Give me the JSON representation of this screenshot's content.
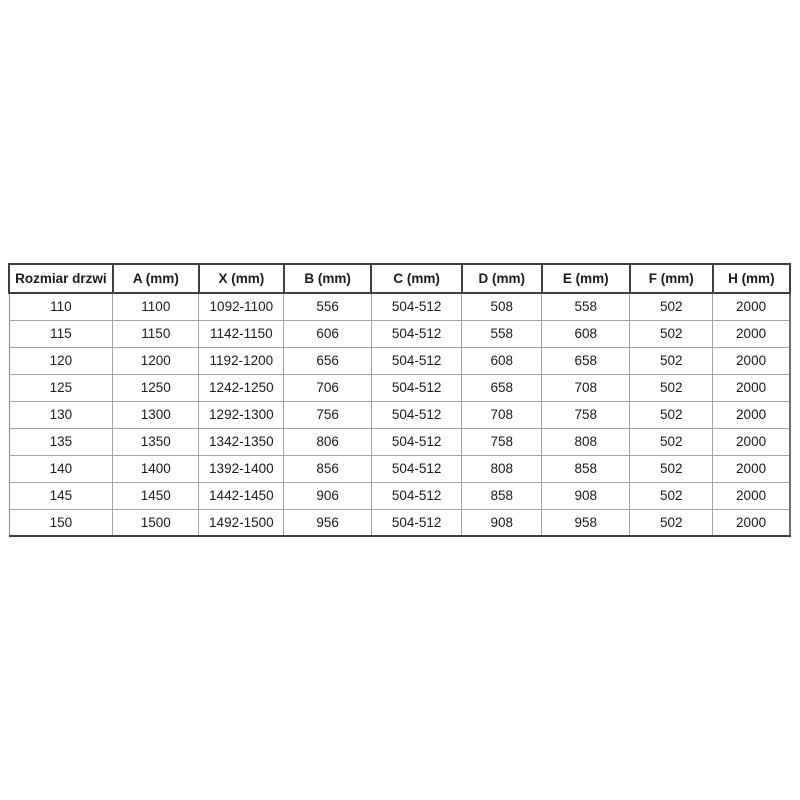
{
  "table": {
    "name": "door-size-specification-table",
    "headers": [
      "Rozmiar drzwi",
      "A (mm)",
      "X (mm)",
      "B (mm)",
      "C (mm)",
      "D (mm)",
      "E (mm)",
      "F (mm)",
      "H (mm)"
    ],
    "rows": [
      [
        "110",
        "1100",
        "1092-1100",
        "556",
        "504-512",
        "508",
        "558",
        "502",
        "2000"
      ],
      [
        "115",
        "1150",
        "1142-1150",
        "606",
        "504-512",
        "558",
        "608",
        "502",
        "2000"
      ],
      [
        "120",
        "1200",
        "1192-1200",
        "656",
        "504-512",
        "608",
        "658",
        "502",
        "2000"
      ],
      [
        "125",
        "1250",
        "1242-1250",
        "706",
        "504-512",
        "658",
        "708",
        "502",
        "2000"
      ],
      [
        "130",
        "1300",
        "1292-1300",
        "756",
        "504-512",
        "708",
        "758",
        "502",
        "2000"
      ],
      [
        "135",
        "1350",
        "1342-1350",
        "806",
        "504-512",
        "758",
        "808",
        "502",
        "2000"
      ],
      [
        "140",
        "1400",
        "1392-1400",
        "856",
        "504-512",
        "808",
        "858",
        "502",
        "2000"
      ],
      [
        "145",
        "1450",
        "1442-1450",
        "906",
        "504-512",
        "858",
        "908",
        "502",
        "2000"
      ],
      [
        "150",
        "1500",
        "1492-1500",
        "956",
        "504-512",
        "908",
        "958",
        "502",
        "2000"
      ]
    ],
    "colors": {
      "header_border": "#404040",
      "body_grid": "#a3a3a3",
      "text": "#1a1a1a",
      "background": "#ffffff"
    }
  }
}
